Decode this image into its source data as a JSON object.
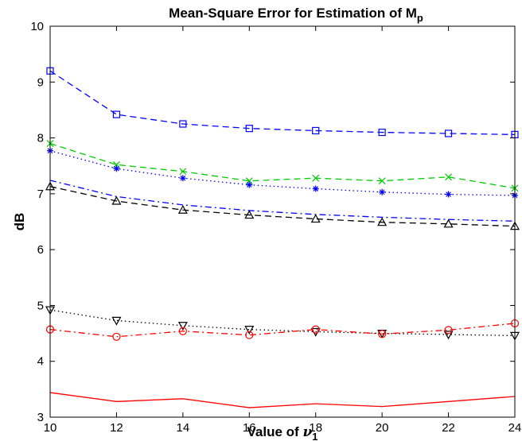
{
  "chart_data": {
    "type": "line",
    "title": "Mean-Square Error for Estimation of M",
    "title_subscript": "p",
    "xlabel": "Value of ",
    "xlabel_symbol": "ν",
    "xlabel_subscript": "1",
    "ylabel": "dB",
    "xlim": [
      10,
      24
    ],
    "ylim": [
      3,
      10
    ],
    "x_ticks": [
      10,
      12,
      14,
      16,
      18,
      20,
      22,
      24
    ],
    "y_ticks": [
      3,
      4,
      5,
      6,
      7,
      8,
      9,
      10
    ],
    "grid": false,
    "x": [
      10,
      12,
      14,
      16,
      18,
      20,
      22,
      24
    ],
    "series": [
      {
        "values": [
          9.2,
          8.42,
          8.25,
          8.17,
          8.13,
          8.1,
          8.08,
          8.06
        ],
        "color": "#0000ff",
        "dash": "dashed",
        "marker": "square"
      },
      {
        "values": [
          7.9,
          7.52,
          7.4,
          7.23,
          7.28,
          7.23,
          7.3,
          7.1
        ],
        "color": "#00cc00",
        "dash": "dashed",
        "marker": "x"
      },
      {
        "values": [
          7.77,
          7.45,
          7.28,
          7.16,
          7.09,
          7.03,
          6.99,
          6.97
        ],
        "color": "#0000ff",
        "dash": "dotted",
        "marker": "star"
      },
      {
        "values": [
          7.24,
          6.95,
          6.8,
          6.7,
          6.63,
          6.58,
          6.54,
          6.51
        ],
        "color": "#0000ff",
        "dash": "dashdot",
        "marker": "none"
      },
      {
        "values": [
          7.13,
          6.87,
          6.71,
          6.62,
          6.55,
          6.49,
          6.46,
          6.42
        ],
        "color": "#000000",
        "dash": "dashed",
        "marker": "triangle-up"
      },
      {
        "values": [
          4.92,
          4.73,
          4.64,
          4.57,
          4.53,
          4.5,
          4.48,
          4.46
        ],
        "color": "#000000",
        "dash": "dotted",
        "marker": "triangle-down"
      },
      {
        "values": [
          4.57,
          4.44,
          4.54,
          4.47,
          4.57,
          4.49,
          4.56,
          4.68
        ],
        "color": "#ff0000",
        "dash": "dashdot",
        "marker": "circle"
      },
      {
        "values": [
          3.44,
          3.28,
          3.33,
          3.17,
          3.24,
          3.19,
          3.28,
          3.37
        ],
        "color": "#ff0000",
        "dash": "solid",
        "marker": "none"
      }
    ]
  }
}
